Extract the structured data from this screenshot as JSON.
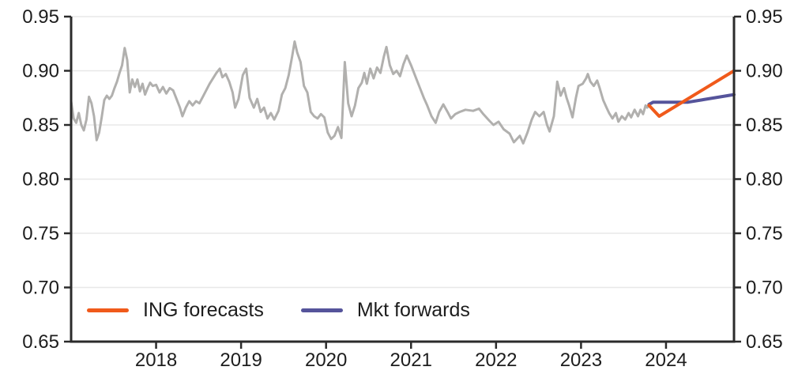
{
  "chart_data": {
    "type": "line",
    "title": "",
    "xlabel": "",
    "ylabel": "",
    "xlim": [
      2017.0,
      2024.8
    ],
    "ylim": [
      0.65,
      0.95
    ],
    "grid": "horizontal",
    "y_ticks": {
      "values": [
        0.65,
        0.7,
        0.75,
        0.8,
        0.85,
        0.9,
        0.95
      ],
      "labels": [
        "0.65",
        "0.70",
        "0.75",
        "0.80",
        "0.85",
        "0.90",
        "0.95"
      ],
      "mirrored_right_axis": true
    },
    "x_ticks": {
      "values": [
        2018,
        2019,
        2020,
        2021,
        2022,
        2023,
        2024
      ],
      "labels": [
        "2018",
        "2019",
        "2020",
        "2021",
        "2022",
        "2023",
        "2024"
      ]
    },
    "legend": [
      {
        "label": "ING forecasts",
        "color": "#F05A1B"
      },
      {
        "label": "Mkt forwards",
        "color": "#55549B"
      }
    ],
    "legend_position": "bottom-left-inside",
    "series": [
      {
        "name": "history",
        "color": "#B1B0AE",
        "width": 3,
        "in_legend": false,
        "points": [
          [
            2017.0,
            0.872
          ],
          [
            2017.03,
            0.856
          ],
          [
            2017.06,
            0.852
          ],
          [
            2017.09,
            0.861
          ],
          [
            2017.12,
            0.85
          ],
          [
            2017.15,
            0.845
          ],
          [
            2017.18,
            0.855
          ],
          [
            2017.21,
            0.876
          ],
          [
            2017.24,
            0.87
          ],
          [
            2017.27,
            0.858
          ],
          [
            2017.3,
            0.836
          ],
          [
            2017.33,
            0.843
          ],
          [
            2017.36,
            0.857
          ],
          [
            2017.39,
            0.873
          ],
          [
            2017.42,
            0.877
          ],
          [
            2017.45,
            0.874
          ],
          [
            2017.48,
            0.877
          ],
          [
            2017.51,
            0.884
          ],
          [
            2017.54,
            0.89
          ],
          [
            2017.57,
            0.898
          ],
          [
            2017.6,
            0.905
          ],
          [
            2017.63,
            0.921
          ],
          [
            2017.66,
            0.91
          ],
          [
            2017.69,
            0.88
          ],
          [
            2017.72,
            0.892
          ],
          [
            2017.75,
            0.885
          ],
          [
            2017.78,
            0.892
          ],
          [
            2017.81,
            0.881
          ],
          [
            2017.84,
            0.888
          ],
          [
            2017.87,
            0.878
          ],
          [
            2017.9,
            0.884
          ],
          [
            2017.93,
            0.889
          ],
          [
            2017.96,
            0.886
          ],
          [
            2018.0,
            0.887
          ],
          [
            2018.04,
            0.88
          ],
          [
            2018.08,
            0.885
          ],
          [
            2018.12,
            0.879
          ],
          [
            2018.16,
            0.884
          ],
          [
            2018.2,
            0.882
          ],
          [
            2018.24,
            0.874
          ],
          [
            2018.28,
            0.866
          ],
          [
            2018.31,
            0.858
          ],
          [
            2018.35,
            0.866
          ],
          [
            2018.39,
            0.872
          ],
          [
            2018.43,
            0.868
          ],
          [
            2018.47,
            0.872
          ],
          [
            2018.51,
            0.87
          ],
          [
            2018.55,
            0.876
          ],
          [
            2018.59,
            0.882
          ],
          [
            2018.63,
            0.888
          ],
          [
            2018.67,
            0.893
          ],
          [
            2018.71,
            0.898
          ],
          [
            2018.75,
            0.902
          ],
          [
            2018.78,
            0.894
          ],
          [
            2018.82,
            0.897
          ],
          [
            2018.86,
            0.89
          ],
          [
            2018.9,
            0.88
          ],
          [
            2018.93,
            0.866
          ],
          [
            2018.97,
            0.874
          ],
          [
            2019.02,
            0.896
          ],
          [
            2019.06,
            0.902
          ],
          [
            2019.1,
            0.875
          ],
          [
            2019.15,
            0.866
          ],
          [
            2019.19,
            0.874
          ],
          [
            2019.23,
            0.862
          ],
          [
            2019.27,
            0.866
          ],
          [
            2019.31,
            0.856
          ],
          [
            2019.35,
            0.861
          ],
          [
            2019.39,
            0.855
          ],
          [
            2019.44,
            0.863
          ],
          [
            2019.48,
            0.878
          ],
          [
            2019.52,
            0.884
          ],
          [
            2019.56,
            0.896
          ],
          [
            2019.6,
            0.913
          ],
          [
            2019.63,
            0.927
          ],
          [
            2019.66,
            0.917
          ],
          [
            2019.7,
            0.908
          ],
          [
            2019.74,
            0.886
          ],
          [
            2019.78,
            0.88
          ],
          [
            2019.82,
            0.862
          ],
          [
            2019.86,
            0.858
          ],
          [
            2019.9,
            0.856
          ],
          [
            2019.94,
            0.86
          ],
          [
            2019.98,
            0.857
          ],
          [
            2020.02,
            0.843
          ],
          [
            2020.06,
            0.837
          ],
          [
            2020.1,
            0.84
          ],
          [
            2020.14,
            0.848
          ],
          [
            2020.18,
            0.838
          ],
          [
            2020.22,
            0.908
          ],
          [
            2020.26,
            0.87
          ],
          [
            2020.3,
            0.858
          ],
          [
            2020.34,
            0.868
          ],
          [
            2020.38,
            0.884
          ],
          [
            2020.42,
            0.889
          ],
          [
            2020.45,
            0.898
          ],
          [
            2020.48,
            0.888
          ],
          [
            2020.52,
            0.902
          ],
          [
            2020.56,
            0.893
          ],
          [
            2020.6,
            0.903
          ],
          [
            2020.64,
            0.898
          ],
          [
            2020.68,
            0.913
          ],
          [
            2020.71,
            0.922
          ],
          [
            2020.75,
            0.905
          ],
          [
            2020.79,
            0.897
          ],
          [
            2020.83,
            0.9
          ],
          [
            2020.87,
            0.895
          ],
          [
            2020.91,
            0.906
          ],
          [
            2020.95,
            0.914
          ],
          [
            2021.0,
            0.905
          ],
          [
            2021.06,
            0.893
          ],
          [
            2021.1,
            0.885
          ],
          [
            2021.15,
            0.875
          ],
          [
            2021.19,
            0.868
          ],
          [
            2021.24,
            0.858
          ],
          [
            2021.29,
            0.852
          ],
          [
            2021.33,
            0.862
          ],
          [
            2021.38,
            0.869
          ],
          [
            2021.43,
            0.862
          ],
          [
            2021.47,
            0.856
          ],
          [
            2021.52,
            0.86
          ],
          [
            2021.57,
            0.862
          ],
          [
            2021.64,
            0.864
          ],
          [
            2021.73,
            0.863
          ],
          [
            2021.8,
            0.865
          ],
          [
            2021.85,
            0.86
          ],
          [
            2021.92,
            0.854
          ],
          [
            2021.97,
            0.85
          ],
          [
            2022.03,
            0.853
          ],
          [
            2022.09,
            0.846
          ],
          [
            2022.16,
            0.842
          ],
          [
            2022.21,
            0.834
          ],
          [
            2022.28,
            0.84
          ],
          [
            2022.32,
            0.833
          ],
          [
            2022.37,
            0.843
          ],
          [
            2022.42,
            0.855
          ],
          [
            2022.46,
            0.862
          ],
          [
            2022.51,
            0.858
          ],
          [
            2022.56,
            0.862
          ],
          [
            2022.6,
            0.85
          ],
          [
            2022.63,
            0.844
          ],
          [
            2022.68,
            0.858
          ],
          [
            2022.72,
            0.89
          ],
          [
            2022.76,
            0.877
          ],
          [
            2022.8,
            0.884
          ],
          [
            2022.83,
            0.875
          ],
          [
            2022.86,
            0.868
          ],
          [
            2022.9,
            0.857
          ],
          [
            2022.94,
            0.875
          ],
          [
            2022.97,
            0.886
          ],
          [
            2023.02,
            0.888
          ],
          [
            2023.06,
            0.893
          ],
          [
            2023.08,
            0.897
          ],
          [
            2023.11,
            0.89
          ],
          [
            2023.15,
            0.886
          ],
          [
            2023.19,
            0.891
          ],
          [
            2023.22,
            0.884
          ],
          [
            2023.26,
            0.873
          ],
          [
            2023.3,
            0.866
          ],
          [
            2023.33,
            0.861
          ],
          [
            2023.37,
            0.856
          ],
          [
            2023.41,
            0.861
          ],
          [
            2023.44,
            0.853
          ],
          [
            2023.48,
            0.858
          ],
          [
            2023.52,
            0.855
          ],
          [
            2023.56,
            0.861
          ],
          [
            2023.59,
            0.857
          ],
          [
            2023.63,
            0.864
          ],
          [
            2023.67,
            0.858
          ],
          [
            2023.7,
            0.864
          ],
          [
            2023.73,
            0.86
          ],
          [
            2023.76,
            0.868
          ],
          [
            2023.78,
            0.866
          ],
          [
            2023.8,
            0.869
          ]
        ]
      },
      {
        "name": "Mkt forwards",
        "color": "#55549B",
        "width": 4,
        "in_legend": true,
        "points": [
          [
            2023.8,
            0.869
          ],
          [
            2023.85,
            0.871
          ],
          [
            2024.26,
            0.871
          ],
          [
            2024.8,
            0.878
          ]
        ]
      },
      {
        "name": "ING forecasts",
        "color": "#F05A1B",
        "width": 4,
        "in_legend": true,
        "points": [
          [
            2023.8,
            0.868
          ],
          [
            2023.92,
            0.858
          ],
          [
            2024.8,
            0.9
          ]
        ]
      }
    ]
  },
  "style": {
    "axis_color": "#2B2B2B",
    "grid_color": "#E8E8E8",
    "label_color": "#1D1D1D",
    "background": "#FFFFFF"
  }
}
